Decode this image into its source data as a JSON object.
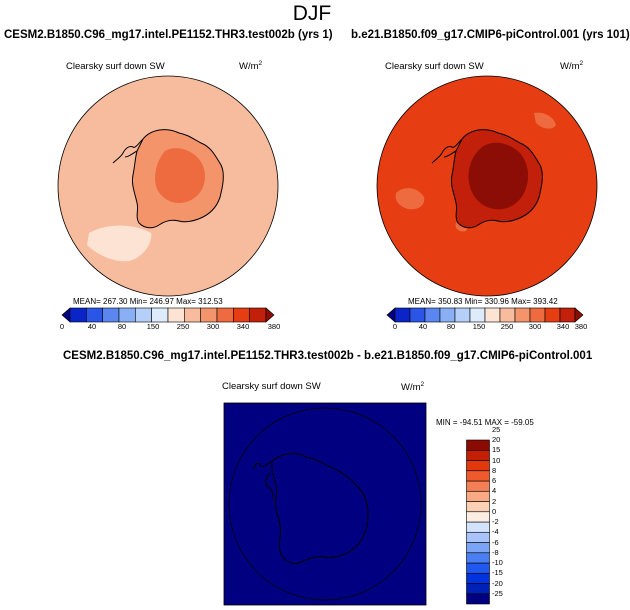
{
  "main_title": "DJF",
  "colors": {
    "scale": [
      "#000080",
      "#0a24c8",
      "#2a55e6",
      "#5b86ef",
      "#89aff5",
      "#b6cff9",
      "#ddebfb",
      "#fde3d3",
      "#f7bc9e",
      "#f3946b",
      "#ee6b40",
      "#e63d13",
      "#c2200b",
      "#8c0d05"
    ],
    "diff_scale": [
      "#000080",
      "#0021b8",
      "#0033e0",
      "#1f57ef",
      "#4a7ff3",
      "#7aa4f6",
      "#a8c4fa",
      "#d4e3fc",
      "#fdeee4",
      "#fbd0b4",
      "#f8a984",
      "#f47e55",
      "#ee5a2c",
      "#e3380b",
      "#c41f05",
      "#8b0a02"
    ]
  },
  "chart_data": [
    {
      "type": "heatmap",
      "projection": "south-polar-stereographic",
      "title": "CESM2.B1850.C96_mg17.intel.PE1152.THR3.test002b (yrs 1)",
      "field": "Clearsky surf down SW",
      "units": "W/m",
      "units_exp": "2",
      "stats_text": "MEAN= 267.30  Min= 246.97  Max= 312.53",
      "stats": {
        "mean": 267.3,
        "min": 246.97,
        "max": 312.53
      },
      "levels": [
        "0",
        "40",
        "80",
        "120",
        "150",
        "200",
        "250",
        "280",
        "300",
        "320",
        "340",
        "360",
        "380"
      ],
      "levels_shown": [
        "0",
        "40",
        "80",
        "150",
        "250",
        "300",
        "340",
        "380"
      ],
      "regions": {
        "ocean": 250,
        "ocean_bright": 270,
        "antarctica": 305,
        "interior": 320
      }
    },
    {
      "type": "heatmap",
      "projection": "south-polar-stereographic",
      "title": "b.e21.B1850.f09_g17.CMIP6-piControl.001 (yrs 101)",
      "field": "Clearsky surf down SW",
      "units": "W/m",
      "units_exp": "2",
      "stats_text": "MEAN= 350.83  Min= 330.96  Max= 393.42",
      "stats": {
        "mean": 350.83,
        "min": 330.96,
        "max": 393.42
      },
      "levels": [
        "0",
        "40",
        "80",
        "120",
        "150",
        "200",
        "250",
        "280",
        "300",
        "320",
        "340",
        "360",
        "380"
      ],
      "levels_shown": [
        "0",
        "40",
        "80",
        "150",
        "250",
        "300",
        "340",
        "380"
      ],
      "regions": {
        "ocean": 345,
        "ocean_bright": 335,
        "antarctica": 370,
        "interior": 390
      }
    },
    {
      "type": "heatmap",
      "projection": "south-polar-stereographic",
      "title": "CESM2.B1850.C96_mg17.intel.PE1152.THR3.test002b - b.e21.B1850.f09_g17.CMIP6-piControl.001",
      "field": "Clearsky surf down SW",
      "units": "W/m",
      "units_exp": "2",
      "stats_text": "MIN = -94.51  MAX = -59.05",
      "stats": {
        "min": -94.51,
        "max": -59.05
      },
      "levels": [
        "-25",
        "-20",
        "-15",
        "-10",
        "-8",
        "-6",
        "-4",
        "-2",
        "0",
        "2",
        "4",
        "6",
        "8",
        "10",
        "15",
        "20",
        "25"
      ],
      "fill_value": -80
    }
  ]
}
